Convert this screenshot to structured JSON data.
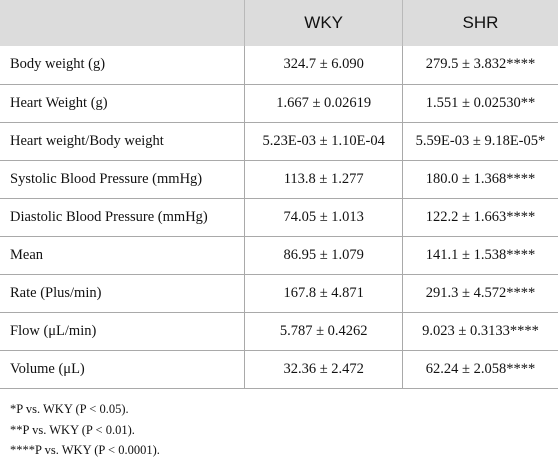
{
  "table": {
    "headers": [
      "",
      "WKY",
      "SHR"
    ],
    "rows": [
      {
        "label": "Body weight (g)",
        "wky": "324.7 ± 6.090",
        "shr": "279.5 ± 3.832****"
      },
      {
        "label": "Heart Weight (g)",
        "wky": "1.667 ± 0.02619",
        "shr": "1.551 ± 0.02530**"
      },
      {
        "label": "Heart weight/Body weight",
        "wky": "5.23E-03 ± 1.10E-04",
        "shr": "5.59E-03 ± 9.18E-05*"
      },
      {
        "label": "Systolic Blood Pressure (mmHg)",
        "wky": "113.8 ± 1.277",
        "shr": "180.0 ± 1.368****"
      },
      {
        "label": "Diastolic Blood Pressure (mmHg)",
        "wky": "74.05 ± 1.013",
        "shr": "122.2 ± 1.663****"
      },
      {
        "label": "Mean",
        "wky": "86.95 ± 1.079",
        "shr": "141.1 ± 1.538****"
      },
      {
        "label": "Rate (Plus/min)",
        "wky": "167.8 ± 4.871",
        "shr": "291.3 ± 4.572****"
      },
      {
        "label": "Flow (μL/min)",
        "wky": "5.787 ± 0.4262",
        "shr": "9.023 ± 0.3133****"
      },
      {
        "label": "Volume (μL)",
        "wky": "32.36 ± 2.472",
        "shr": "62.24 ± 2.058****"
      }
    ]
  },
  "footnotes": [
    "*P vs. WKY (P < 0.05).",
    "**P vs. WKY (P < 0.01).",
    "****P vs. WKY (P < 0.0001)."
  ]
}
